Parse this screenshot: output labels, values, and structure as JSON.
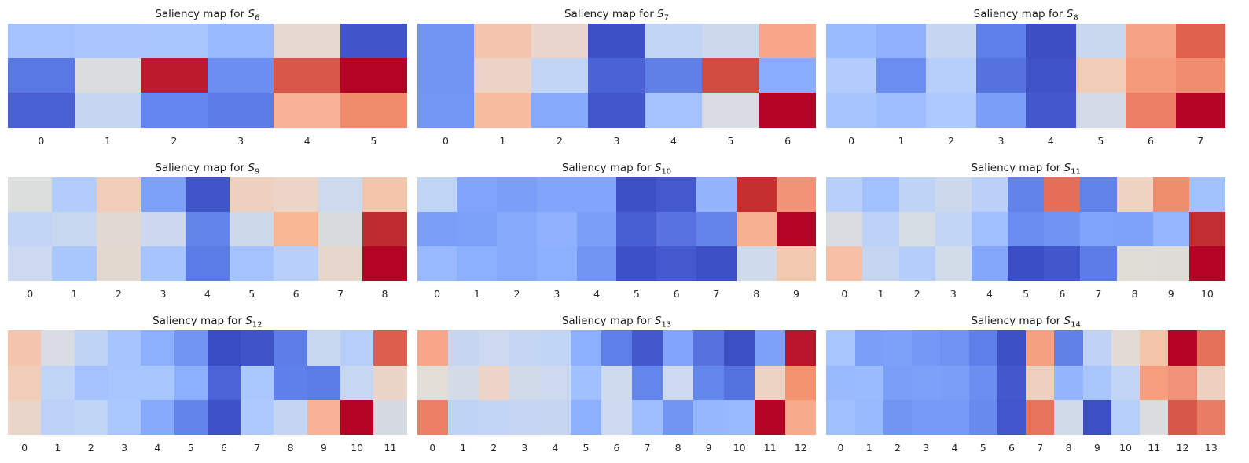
{
  "figure": {
    "background": "#ffffff",
    "title_color": "#1a1a1a",
    "tick_color": "#262626"
  },
  "chart_data": [
    {
      "type": "heatmap",
      "id": "S6",
      "title": "Saliency map for S_6",
      "title_prefix": "Saliency map for ",
      "series_symbol": "S",
      "series_index": "6",
      "colormap": "coolwarm",
      "x_ticks": [
        "0",
        "1",
        "2",
        "3",
        "4",
        "5"
      ],
      "cell_colors": [
        [
          "#a3c2ff",
          "#abc6fe",
          "#aac6fe",
          "#98b9ff",
          "#e5d8d1",
          "#4055c8"
        ],
        [
          "#5a78e3",
          "#dadcde",
          "#bd1a2d",
          "#6c8ef1",
          "#d8564a",
          "#b40426"
        ],
        [
          "#4a61d4",
          "#c4d6f2",
          "#6286ed",
          "#5d7ce6",
          "#f7b194",
          "#f08b6c"
        ]
      ]
    },
    {
      "type": "heatmap",
      "id": "S7",
      "title": "Saliency map for S_7",
      "title_prefix": "Saliency map for ",
      "series_symbol": "S",
      "series_index": "7",
      "colormap": "coolwarm",
      "x_ticks": [
        "0",
        "1",
        "2",
        "3",
        "4",
        "5",
        "6"
      ],
      "cell_colors": [
        [
          "#7195f3",
          "#f5c4ad",
          "#e9d5cb",
          "#3d50c3",
          "#c2d5f4",
          "#ccd9ec",
          "#f7a687"
        ],
        [
          "#7095f3",
          "#ecd3c5",
          "#c3d5f4",
          "#4a62d3",
          "#6080e8",
          "#d04b40",
          "#8aacfd"
        ],
        [
          "#7396f5",
          "#f7bba0",
          "#86a9fc",
          "#4157ca",
          "#a3c2ff",
          "#d8dce2",
          "#b40426"
        ]
      ]
    },
    {
      "type": "heatmap",
      "id": "S8",
      "title": "Saliency map for S_8",
      "title_prefix": "Saliency map for ",
      "series_symbol": "S",
      "series_index": "8",
      "colormap": "coolwarm",
      "x_ticks": [
        "0",
        "1",
        "2",
        "3",
        "4",
        "5",
        "6",
        "7"
      ],
      "cell_colors": [
        [
          "#9abbff",
          "#8fb1fe",
          "#c6d6f2",
          "#5f7fe8",
          "#3c4ec2",
          "#c9d8ef",
          "#f6a385",
          "#de604d"
        ],
        [
          "#b2ccfb",
          "#6c8ef1",
          "#b6cefa",
          "#5572de",
          "#3f53c6",
          "#f1ccb9",
          "#f49a7b",
          "#f18d6f"
        ],
        [
          "#a6c4fe",
          "#9ebeff",
          "#aec9fd",
          "#7b9ff9",
          "#4358cb",
          "#d5dbe6",
          "#ec7f63",
          "#b40426"
        ]
      ]
    },
    {
      "type": "heatmap",
      "id": "S9",
      "title": "Saliency map for S_9",
      "title_prefix": "Saliency map for ",
      "series_symbol": "S",
      "series_index": "9",
      "colormap": "coolwarm",
      "x_ticks": [
        "0",
        "1",
        "2",
        "3",
        "4",
        "5",
        "6",
        "7",
        "8"
      ],
      "cell_colors": [
        [
          "#dcdddd",
          "#b2ccfb",
          "#f1ccb9",
          "#7da0f9",
          "#4055c8",
          "#edd0bf",
          "#ecd4c7",
          "#cdd9ec",
          "#f2c5ab"
        ],
        [
          "#c2d5f4",
          "#c8d7f0",
          "#e2d8d2",
          "#cbd8ee",
          "#6285ec",
          "#cdd9e9",
          "#f8b693",
          "#d9dadd",
          "#bf2a31"
        ],
        [
          "#ccd9ee",
          "#aac7fd",
          "#e2d8d0",
          "#a6c4fe",
          "#5c7ce5",
          "#a3c2ff",
          "#b8d0f9",
          "#e6d6cc",
          "#b40426"
        ]
      ]
    },
    {
      "type": "heatmap",
      "id": "S10",
      "title": "Saliency map for S_10",
      "title_prefix": "Saliency map for ",
      "series_symbol": "S",
      "series_index": "10",
      "colormap": "coolwarm",
      "x_ticks": [
        "0",
        "1",
        "2",
        "3",
        "4",
        "5",
        "6",
        "7",
        "8",
        "9"
      ],
      "cell_colors": [
        [
          "#c0d4f5",
          "#82a5fb",
          "#7b9ff9",
          "#82a5fb",
          "#82a5fb",
          "#3e50c6",
          "#4459ce",
          "#93b3fd",
          "#c52f30",
          "#f29377"
        ],
        [
          "#7b9ff9",
          "#7da0f9",
          "#86a9fc",
          "#90b2fe",
          "#7b9ff9",
          "#485ed3",
          "#5873e1",
          "#6484eb",
          "#f7b192",
          "#b40426"
        ],
        [
          "#98b9ff",
          "#8db0fe",
          "#86a9fc",
          "#8db0fe",
          "#7295f4",
          "#3e50c7",
          "#4459ce",
          "#3c4fc5",
          "#cfdaeb",
          "#f2c9ae"
        ]
      ]
    },
    {
      "type": "heatmap",
      "id": "S11",
      "title": "Saliency map for S_11",
      "title_prefix": "Saliency map for ",
      "series_symbol": "S",
      "series_index": "11",
      "colormap": "coolwarm",
      "x_ticks": [
        "0",
        "1",
        "2",
        "3",
        "4",
        "5",
        "6",
        "7",
        "8",
        "9",
        "10"
      ],
      "cell_colors": [
        [
          "#b7cff9",
          "#a2c1ff",
          "#bfd3f6",
          "#ccd9ed",
          "#bad0f8",
          "#6183e9",
          "#e46e56",
          "#6083e9",
          "#eed2c2",
          "#ef8e6d",
          "#a2c2fe"
        ],
        [
          "#d9dce1",
          "#bcd2f7",
          "#d6dce4",
          "#c3d5f4",
          "#a0c0ff",
          "#6b8cf0",
          "#7193f3",
          "#80a3fa",
          "#7ea1f9",
          "#95b6fe",
          "#c22d31"
        ],
        [
          "#f6bfa6",
          "#c6d6f1",
          "#b5cdfa",
          "#d2dbe8",
          "#84a7fc",
          "#3c4ec6",
          "#4257cb",
          "#5d7ce6",
          "#e0dcd6",
          "#dfdcd8",
          "#b40426"
        ]
      ]
    },
    {
      "type": "heatmap",
      "id": "S12",
      "title": "Saliency map for S_12",
      "title_prefix": "Saliency map for ",
      "series_symbol": "S",
      "series_index": "12",
      "colormap": "coolwarm",
      "x_ticks": [
        "0",
        "1",
        "2",
        "3",
        "4",
        "5",
        "6",
        "7",
        "8",
        "9",
        "10",
        "11"
      ],
      "cell_colors": [
        [
          "#f5c4ad",
          "#d8dce2",
          "#bed3f6",
          "#a6c4fe",
          "#8db0fe",
          "#7295f4",
          "#3a4cc4",
          "#4054c9",
          "#5e7de7",
          "#c8d7f0",
          "#b8cefa",
          "#dd5e4c"
        ],
        [
          "#f1ccb9",
          "#c0d4f5",
          "#a3c2ff",
          "#a7c5fe",
          "#a7c5fe",
          "#8db0fe",
          "#4b63d5",
          "#aac8fd",
          "#5f80e8",
          "#5b7ce6",
          "#c7d7f1",
          "#ead3c7"
        ],
        [
          "#e9d5c9",
          "#bbd1f8",
          "#c0d4f5",
          "#abc8fd",
          "#86a9fc",
          "#6384eb",
          "#3e51c8",
          "#aec9fd",
          "#c3d5f3",
          "#f7b194",
          "#b40426",
          "#d5d9e0"
        ]
      ]
    },
    {
      "type": "heatmap",
      "id": "S13",
      "title": "Saliency map for S_13",
      "title_prefix": "Saliency map for ",
      "series_symbol": "S",
      "series_index": "13",
      "colormap": "coolwarm",
      "x_ticks": [
        "0",
        "1",
        "2",
        "3",
        "4",
        "5",
        "6",
        "7",
        "8",
        "9",
        "10",
        "11",
        "12"
      ],
      "cell_colors": [
        [
          "#f7a687",
          "#c6d6f2",
          "#ccd9ee",
          "#c4d6f3",
          "#c0d4f5",
          "#8db0fe",
          "#5f7fe8",
          "#4358cb",
          "#82a5fb",
          "#5572de",
          "#3d50c3",
          "#7da0f9",
          "#bb152b"
        ],
        [
          "#e2ddd7",
          "#d2dbe7",
          "#ecd4c6",
          "#d1dae8",
          "#ccd9ee",
          "#a0c0ff",
          "#cdd9ec",
          "#6486ec",
          "#ccd9ee",
          "#6386ed",
          "#5472de",
          "#ecd2c2",
          "#f2926f"
        ],
        [
          "#ec7f63",
          "#bed3f6",
          "#c2d5f4",
          "#c4d6f3",
          "#c6d6f2",
          "#8db0fe",
          "#ccd9ee",
          "#9ebeff",
          "#7295f4",
          "#95b7fe",
          "#98b9ff",
          "#b40426",
          "#f7a98c"
        ]
      ]
    },
    {
      "type": "heatmap",
      "id": "S14",
      "title": "Saliency map for S_14",
      "title_prefix": "Saliency map for ",
      "series_symbol": "S",
      "series_index": "14",
      "colormap": "coolwarm",
      "x_ticks": [
        "0",
        "1",
        "2",
        "3",
        "4",
        "5",
        "6",
        "7",
        "8",
        "9",
        "10",
        "11",
        "12",
        "13"
      ],
      "cell_colors": [
        [
          "#a8c5fd",
          "#7b9ff9",
          "#7da0f9",
          "#7597f6",
          "#7093f3",
          "#5f7fe8",
          "#3e50c6",
          "#f5a081",
          "#6181e9",
          "#c0d2f5",
          "#e3dad3",
          "#f2c4a8",
          "#b40426",
          "#e57058"
        ],
        [
          "#98b9ff",
          "#9abbff",
          "#7b9ff9",
          "#7da0f9",
          "#7b9ff9",
          "#6c8ef1",
          "#4358cb",
          "#eed0bf",
          "#93b5fe",
          "#aac7fd",
          "#c2d5f4",
          "#f59d7c",
          "#f09279",
          "#eed0c0"
        ],
        [
          "#a1c0ff",
          "#98b9ff",
          "#7295f4",
          "#7799f6",
          "#7799f6",
          "#688aef",
          "#4155cc",
          "#e7735a",
          "#d0dae9",
          "#3d50c3",
          "#b6cefa",
          "#dbdcdf",
          "#d65849",
          "#e97c64"
        ]
      ]
    }
  ]
}
